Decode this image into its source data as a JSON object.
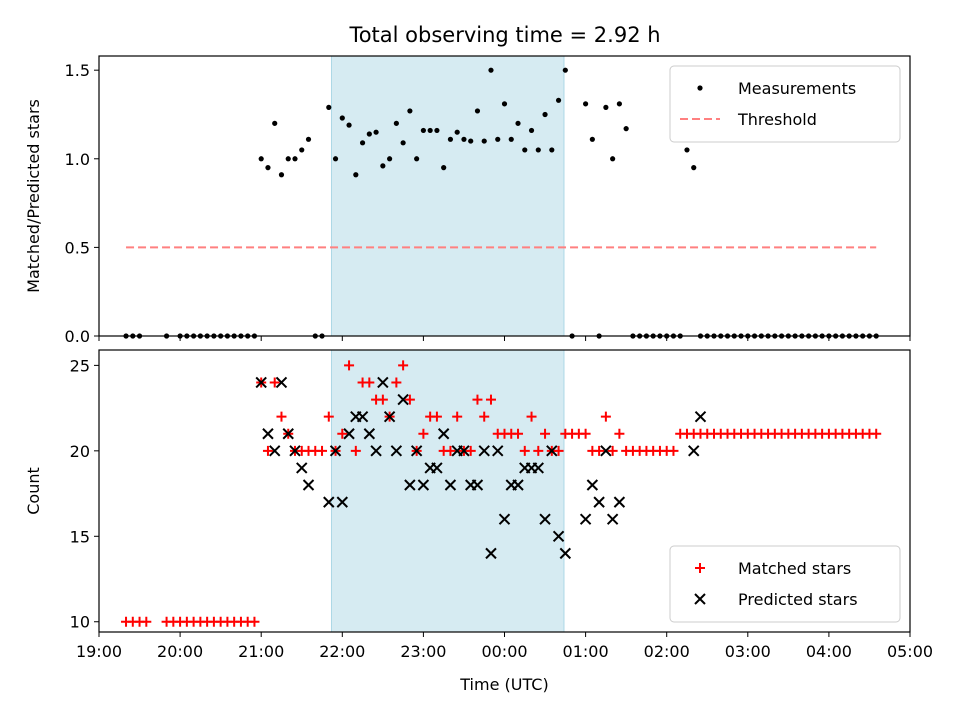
{
  "figure": {
    "title": "Total observing time = 2.92 h"
  },
  "chart_data": [
    {
      "type": "scatter",
      "title": "Total observing time = 2.92 h",
      "xlabel": "",
      "ylabel": "Matched/Predicted stars",
      "xlim": [
        "19:00",
        "05:00"
      ],
      "ylim": [
        0,
        1.58
      ],
      "xticks": [
        "19:00",
        "20:00",
        "21:00",
        "22:00",
        "23:00",
        "00:00",
        "01:00",
        "02:00",
        "03:00",
        "04:00",
        "05:00"
      ],
      "yticks": [
        "0.0",
        "0.5",
        "1.0",
        "1.5"
      ],
      "shaded_span": [
        "21:52",
        "00:44"
      ],
      "legend": {
        "placement": "top-right",
        "entries": [
          "Measurements",
          "Threshold"
        ]
      },
      "series": [
        {
          "name": "Measurements",
          "color": "#000000",
          "marker": "dot",
          "x": [
            "19:20",
            "19:25",
            "19:30",
            "19:50",
            "20:00",
            "20:05",
            "20:10",
            "20:15",
            "20:20",
            "20:25",
            "20:30",
            "20:35",
            "20:40",
            "20:45",
            "20:50",
            "20:55",
            "21:00",
            "21:05",
            "21:10",
            "21:15",
            "21:20",
            "21:25",
            "21:30",
            "21:35",
            "21:40",
            "21:45",
            "21:50",
            "21:55",
            "22:00",
            "22:05",
            "22:10",
            "22:15",
            "22:20",
            "22:25",
            "22:30",
            "22:35",
            "22:40",
            "22:45",
            "22:50",
            "22:55",
            "23:00",
            "23:05",
            "23:10",
            "23:15",
            "23:20",
            "23:25",
            "23:30",
            "23:35",
            "23:40",
            "23:45",
            "23:50",
            "23:55",
            "00:00",
            "00:05",
            "00:10",
            "00:15",
            "00:20",
            "00:25",
            "00:30",
            "00:35",
            "00:40",
            "00:45",
            "00:50",
            "01:00",
            "01:05",
            "01:10",
            "01:15",
            "01:20",
            "01:25",
            "01:30",
            "01:35",
            "01:40",
            "01:45",
            "01:50",
            "01:55",
            "02:00",
            "02:05",
            "02:10",
            "02:15",
            "02:20",
            "02:25",
            "02:30",
            "02:35",
            "02:40",
            "02:45",
            "02:50",
            "02:55",
            "03:00",
            "03:05",
            "03:10",
            "03:15",
            "03:20",
            "03:25",
            "03:30",
            "03:35",
            "03:40",
            "03:45",
            "03:50",
            "03:55",
            "04:00",
            "04:05",
            "04:10",
            "04:15",
            "04:20",
            "04:25",
            "04:30",
            "04:35"
          ],
          "y": [
            0,
            0,
            0,
            0,
            0,
            0,
            0,
            0,
            0,
            0,
            0,
            0,
            0,
            0,
            0,
            0,
            1.0,
            0.95,
            1.2,
            0.91,
            1.0,
            1.0,
            1.05,
            1.11,
            0,
            0,
            1.29,
            1.0,
            1.23,
            1.19,
            0.91,
            1.09,
            1.14,
            1.15,
            0.96,
            1.0,
            1.2,
            1.09,
            1.27,
            1.0,
            1.16,
            1.16,
            1.16,
            0.95,
            1.11,
            1.15,
            1.11,
            1.1,
            1.27,
            1.1,
            1.5,
            1.11,
            1.31,
            1.11,
            1.2,
            1.05,
            1.16,
            1.05,
            1.25,
            1.05,
            1.33,
            1.5,
            0,
            1.31,
            1.11,
            0,
            1.29,
            1.0,
            1.31,
            1.17,
            0,
            0,
            0,
            0,
            0,
            0,
            0,
            0,
            1.05,
            0.95,
            0,
            0,
            0,
            0,
            0,
            0,
            0,
            0,
            0,
            0,
            0,
            0,
            0,
            0,
            0,
            0,
            0,
            0,
            0,
            0,
            0,
            0,
            0,
            0,
            0,
            0,
            0
          ]
        },
        {
          "name": "Threshold",
          "color": "#ff8080",
          "line": "dashed",
          "x": [
            "19:20",
            "04:35"
          ],
          "y": [
            0.5,
            0.5
          ]
        }
      ]
    },
    {
      "type": "scatter",
      "title": "",
      "xlabel": "Time (UTC)",
      "ylabel": "Count",
      "xlim": [
        "19:00",
        "05:00"
      ],
      "ylim": [
        9.4,
        25.9
      ],
      "xticks": [
        "19:00",
        "20:00",
        "21:00",
        "22:00",
        "23:00",
        "00:00",
        "01:00",
        "02:00",
        "03:00",
        "04:00",
        "05:00"
      ],
      "yticks": [
        "10",
        "15",
        "20",
        "25"
      ],
      "shaded_span": [
        "21:52",
        "00:44"
      ],
      "legend": {
        "placement": "bottom-right",
        "entries": [
          "Matched stars",
          "Predicted stars"
        ]
      },
      "series": [
        {
          "name": "Matched stars",
          "color": "#ff0000",
          "marker": "plus",
          "x": [
            "19:20",
            "19:25",
            "19:30",
            "19:35",
            "19:50",
            "19:55",
            "20:00",
            "20:05",
            "20:10",
            "20:15",
            "20:20",
            "20:25",
            "20:30",
            "20:35",
            "20:40",
            "20:45",
            "20:50",
            "20:55",
            "21:00",
            "21:05",
            "21:10",
            "21:15",
            "21:20",
            "21:25",
            "21:30",
            "21:35",
            "21:40",
            "21:45",
            "21:50",
            "21:55",
            "22:00",
            "22:05",
            "22:10",
            "22:15",
            "22:20",
            "22:25",
            "22:30",
            "22:35",
            "22:40",
            "22:45",
            "22:50",
            "22:55",
            "23:00",
            "23:05",
            "23:10",
            "23:15",
            "23:20",
            "23:25",
            "23:30",
            "23:35",
            "23:40",
            "23:45",
            "23:50",
            "23:55",
            "00:00",
            "00:05",
            "00:10",
            "00:15",
            "00:20",
            "00:25",
            "00:30",
            "00:35",
            "00:40",
            "00:45",
            "00:50",
            "00:55",
            "01:00",
            "01:05",
            "01:10",
            "01:15",
            "01:20",
            "01:25",
            "01:30",
            "01:35",
            "01:40",
            "01:45",
            "01:50",
            "01:55",
            "02:00",
            "02:05",
            "02:10",
            "02:15",
            "02:20",
            "02:25",
            "02:30",
            "02:35",
            "02:40",
            "02:45",
            "02:50",
            "02:55",
            "03:00",
            "03:05",
            "03:10",
            "03:15",
            "03:20",
            "03:25",
            "03:30",
            "03:35",
            "03:40",
            "03:45",
            "03:50",
            "03:55",
            "04:00",
            "04:05",
            "04:10",
            "04:15",
            "04:20",
            "04:25",
            "04:30",
            "04:35"
          ],
          "y": [
            10,
            10,
            10,
            10,
            10,
            10,
            10,
            10,
            10,
            10,
            10,
            10,
            10,
            10,
            10,
            10,
            10,
            10,
            24,
            20,
            24,
            22,
            21,
            20,
            20,
            20,
            20,
            20,
            22,
            20,
            21,
            25,
            20,
            24,
            24,
            23,
            23,
            22,
            24,
            25,
            23,
            20,
            21,
            22,
            22,
            20,
            20,
            22,
            20,
            20,
            23,
            22,
            23,
            21,
            21,
            21,
            21,
            20,
            22,
            20,
            21,
            20,
            20,
            21,
            21,
            21,
            21,
            20,
            20,
            22,
            20,
            21,
            20,
            20,
            20,
            20,
            20,
            20,
            20,
            20,
            21,
            21,
            21,
            21,
            21,
            21,
            21,
            21,
            21,
            21,
            21,
            21,
            21,
            21,
            21,
            21,
            21,
            21,
            21,
            21,
            21,
            21,
            21,
            21,
            21,
            21,
            21,
            21,
            21,
            21
          ]
        },
        {
          "name": "Predicted stars",
          "color": "#000000",
          "marker": "x",
          "x": [
            "21:00",
            "21:05",
            "21:10",
            "21:15",
            "21:20",
            "21:25",
            "21:30",
            "21:35",
            "21:50",
            "21:55",
            "22:00",
            "22:05",
            "22:10",
            "22:15",
            "22:20",
            "22:25",
            "22:30",
            "22:35",
            "22:40",
            "22:45",
            "22:50",
            "22:55",
            "23:00",
            "23:05",
            "23:10",
            "23:15",
            "23:20",
            "23:25",
            "23:30",
            "23:35",
            "23:40",
            "23:45",
            "23:50",
            "23:55",
            "00:00",
            "00:05",
            "00:10",
            "00:15",
            "00:20",
            "00:25",
            "00:30",
            "00:35",
            "00:40",
            "00:45",
            "01:00",
            "01:05",
            "01:10",
            "01:15",
            "01:20",
            "01:25",
            "02:20",
            "02:25"
          ],
          "y": [
            24,
            21,
            20,
            24,
            21,
            20,
            19,
            18,
            17,
            20,
            17,
            21,
            22,
            22,
            21,
            20,
            24,
            22,
            20,
            23,
            18,
            20,
            18,
            19,
            19,
            21,
            18,
            20,
            20,
            18,
            18,
            20,
            14,
            20,
            16,
            18,
            18,
            19,
            19,
            19,
            16,
            20,
            15,
            14,
            16,
            18,
            17,
            20,
            16,
            17,
            20,
            22
          ]
        }
      ]
    }
  ]
}
